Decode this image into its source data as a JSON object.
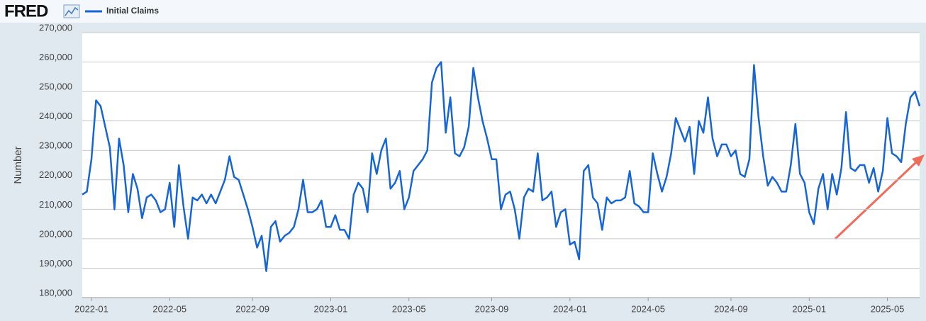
{
  "logo": "FRED",
  "chart_data": {
    "type": "line",
    "ylabel": "Number",
    "legend": "top-left",
    "grid": true,
    "ylim": [
      180000,
      270000
    ],
    "yticks": [
      {
        "value": 180000,
        "label": "180,000"
      },
      {
        "value": 190000,
        "label": "190,000"
      },
      {
        "value": 200000,
        "label": "200,000"
      },
      {
        "value": 210000,
        "label": "210,000"
      },
      {
        "value": 220000,
        "label": "220,000"
      },
      {
        "value": 230000,
        "label": "230,000"
      },
      {
        "value": 240000,
        "label": "240,000"
      },
      {
        "value": 250000,
        "label": "250,000"
      },
      {
        "value": 260000,
        "label": "260,000"
      },
      {
        "value": 270000,
        "label": "270,000"
      }
    ],
    "categories": [
      null,
      null,
      "2022-01",
      null,
      null,
      null,
      null,
      null,
      null,
      null,
      null,
      null,
      null,
      null,
      null,
      null,
      null,
      null,
      null,
      "2022-05",
      null,
      null,
      null,
      null,
      null,
      null,
      null,
      null,
      null,
      null,
      null,
      null,
      null,
      null,
      null,
      null,
      null,
      "2022-09",
      null,
      null,
      null,
      null,
      null,
      null,
      null,
      null,
      null,
      null,
      null,
      null,
      null,
      null,
      null,
      null,
      "2023-01",
      null,
      null,
      null,
      null,
      null,
      null,
      null,
      null,
      null,
      null,
      null,
      null,
      null,
      null,
      null,
      null,
      "2023-05",
      null,
      null,
      null,
      null,
      null,
      null,
      null,
      null,
      null,
      null,
      null,
      null,
      null,
      null,
      null,
      null,
      null,
      "2023-09",
      null,
      null,
      null,
      null,
      null,
      null,
      null,
      null,
      null,
      null,
      null,
      null,
      null,
      null,
      null,
      null,
      "2024-01",
      null,
      null,
      null,
      null,
      null,
      null,
      null,
      null,
      null,
      null,
      null,
      null,
      null,
      null,
      null,
      null,
      "2024-05",
      null,
      null,
      null,
      null,
      null,
      null,
      null,
      null,
      null,
      null,
      null,
      null,
      null,
      null,
      null,
      null,
      null,
      "2024-09",
      null,
      null,
      null,
      null,
      null,
      null,
      null,
      null,
      null,
      null,
      null,
      null,
      null,
      null,
      null,
      null,
      "2025-01",
      null,
      null,
      null,
      null,
      null,
      null,
      null,
      null,
      null,
      null,
      null,
      null,
      null,
      null,
      null,
      null,
      "2025-05",
      null,
      null,
      null,
      null,
      null,
      null,
      null
    ],
    "series": [
      {
        "name": "Initial Claims",
        "color": "#1565d8",
        "values": [
          215000,
          216000,
          227000,
          247000,
          245000,
          238000,
          231000,
          210000,
          234000,
          225000,
          209000,
          222000,
          217000,
          207000,
          214000,
          215000,
          213000,
          209000,
          210000,
          219000,
          204000,
          225000,
          211000,
          200000,
          214000,
          213000,
          215000,
          212000,
          215000,
          212000,
          216000,
          220000,
          228000,
          221000,
          220000,
          215000,
          210000,
          204000,
          197000,
          201000,
          189000,
          204000,
          206000,
          199000,
          201000,
          202000,
          204000,
          210000,
          220000,
          209000,
          209000,
          210000,
          213000,
          204000,
          204000,
          208000,
          203000,
          203000,
          200000,
          215000,
          219000,
          217000,
          209000,
          229000,
          222000,
          230000,
          234000,
          217000,
          219000,
          223000,
          210000,
          214000,
          223000,
          225000,
          227000,
          230000,
          253000,
          258000,
          260000,
          236000,
          248000,
          229000,
          228000,
          231000,
          238000,
          258000,
          248000,
          240000,
          234000,
          227000,
          227000,
          210000,
          215000,
          216000,
          210000,
          200000,
          214000,
          217000,
          216000,
          229000,
          213000,
          214000,
          216000,
          204000,
          209000,
          210000,
          198000,
          199000,
          193000,
          223000,
          225000,
          214000,
          212000,
          203000,
          214000,
          212000,
          213000,
          213000,
          214000,
          223000,
          212000,
          211000,
          209000,
          209000,
          229000,
          222000,
          216000,
          221000,
          229000,
          241000,
          237000,
          233000,
          238000,
          222000,
          240000,
          236000,
          248000,
          234000,
          228000,
          232000,
          232000,
          228000,
          230000,
          222000,
          221000,
          227000,
          259000,
          241000,
          228000,
          218000,
          221000,
          219000,
          216000,
          216000,
          225000,
          239000,
          222000,
          219000,
          209000,
          205000,
          217000,
          222000,
          210000,
          222000,
          215000,
          224000,
          243000,
          224000,
          223000,
          225000,
          225000,
          219000,
          224000,
          216000,
          223000,
          241000,
          229000,
          228000,
          226000,
          239000,
          248000,
          250000,
          245000
        ]
      }
    ]
  }
}
